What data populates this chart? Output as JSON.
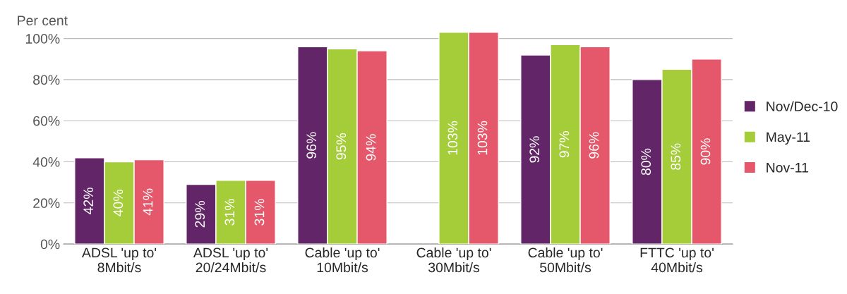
{
  "chart_data": {
    "type": "bar",
    "ylabel": "Per cent",
    "categories": [
      "ADSL 'up to'\n8Mbit/s",
      "ADSL 'up to'\n20/24Mbit/s",
      "Cable 'up to'\n10Mbit/s",
      "Cable 'up to'\n30Mbit/s",
      "Cable 'up to'\n50Mbit/s",
      "FTTC 'up to'\n40Mbit/s"
    ],
    "series": [
      {
        "name": "Nov/Dec-10",
        "color": "#622567",
        "values": [
          42,
          29,
          96,
          null,
          92,
          80
        ],
        "value_labels": [
          "42%",
          "29%",
          "96%",
          null,
          "92%",
          "80%"
        ]
      },
      {
        "name": "May-11",
        "color": "#a5cd39",
        "values": [
          40,
          31,
          95,
          103,
          97,
          85
        ],
        "value_labels": [
          "40%",
          "31%",
          "95%",
          "103%",
          "97%",
          "85%"
        ]
      },
      {
        "name": "Nov-11",
        "color": "#e5576a",
        "values": [
          41,
          31,
          94,
          103,
          96,
          90
        ],
        "value_labels": [
          "41%",
          "31%",
          "94%",
          "103%",
          "96%",
          "90%"
        ]
      }
    ],
    "yticks": [
      {
        "value": 0,
        "label": "0%"
      },
      {
        "value": 20,
        "label": "20%"
      },
      {
        "value": 40,
        "label": "40%"
      },
      {
        "value": 60,
        "label": "60%"
      },
      {
        "value": 80,
        "label": "80%"
      },
      {
        "value": 100,
        "label": "100%"
      }
    ],
    "ylim": [
      0,
      103
    ],
    "grid": "y",
    "legend": "right"
  }
}
